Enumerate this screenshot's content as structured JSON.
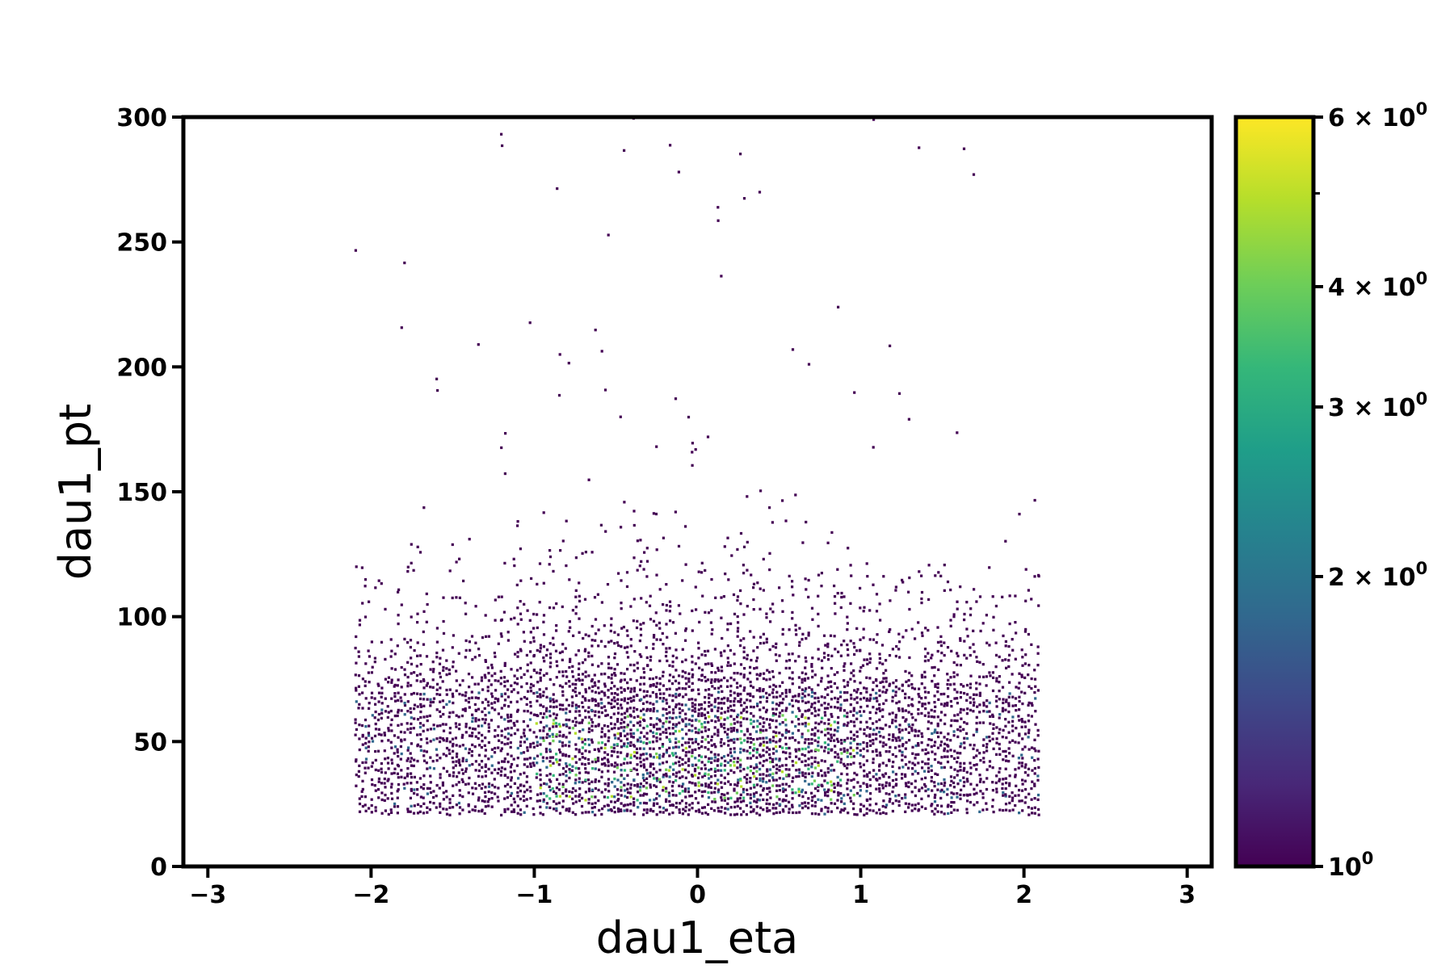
{
  "chart_data": {
    "type": "heatmap",
    "subtype": "2d-histogram",
    "title": "",
    "xlabel": "dau1_eta",
    "ylabel": "dau1_pt",
    "xlim": [
      -3.15,
      3.15
    ],
    "ylim": [
      0,
      300
    ],
    "x_ticks": [
      -3,
      -2,
      -1,
      0,
      1,
      2,
      3
    ],
    "x_tick_labels": [
      "−3",
      "−2",
      "−1",
      "0",
      "1",
      "2",
      "3"
    ],
    "y_ticks": [
      0,
      50,
      100,
      150,
      200,
      250,
      300
    ],
    "y_tick_labels": [
      "0",
      "50",
      "100",
      "150",
      "200",
      "250",
      "300"
    ],
    "data_extent": {
      "eta": [
        -2.1,
        2.1
      ],
      "pt": [
        20,
        300
      ]
    },
    "peak_region": {
      "eta": [
        -1.0,
        1.0
      ],
      "pt": [
        25,
        60
      ]
    },
    "grid": false,
    "colorbar": {
      "scale": "log",
      "colormap": "viridis",
      "range": [
        1,
        6
      ],
      "major_ticks": [
        {
          "value": 1,
          "mantissa": "",
          "base": "10",
          "exp": "0"
        },
        {
          "value": 2,
          "mantissa": "2",
          "base": "10",
          "exp": "0"
        },
        {
          "value": 3,
          "mantissa": "3",
          "base": "10",
          "exp": "0"
        },
        {
          "value": 4,
          "mantissa": "4",
          "base": "10",
          "exp": "0"
        },
        {
          "value": 6,
          "mantissa": "6",
          "base": "10",
          "exp": "0"
        }
      ],
      "minor_ticks": [
        5
      ],
      "colors": [
        "#440154",
        "#482878",
        "#3e4989",
        "#31688e",
        "#26828e",
        "#1f9e89",
        "#35b779",
        "#6ece58",
        "#b5de2b",
        "#fde725"
      ]
    }
  }
}
